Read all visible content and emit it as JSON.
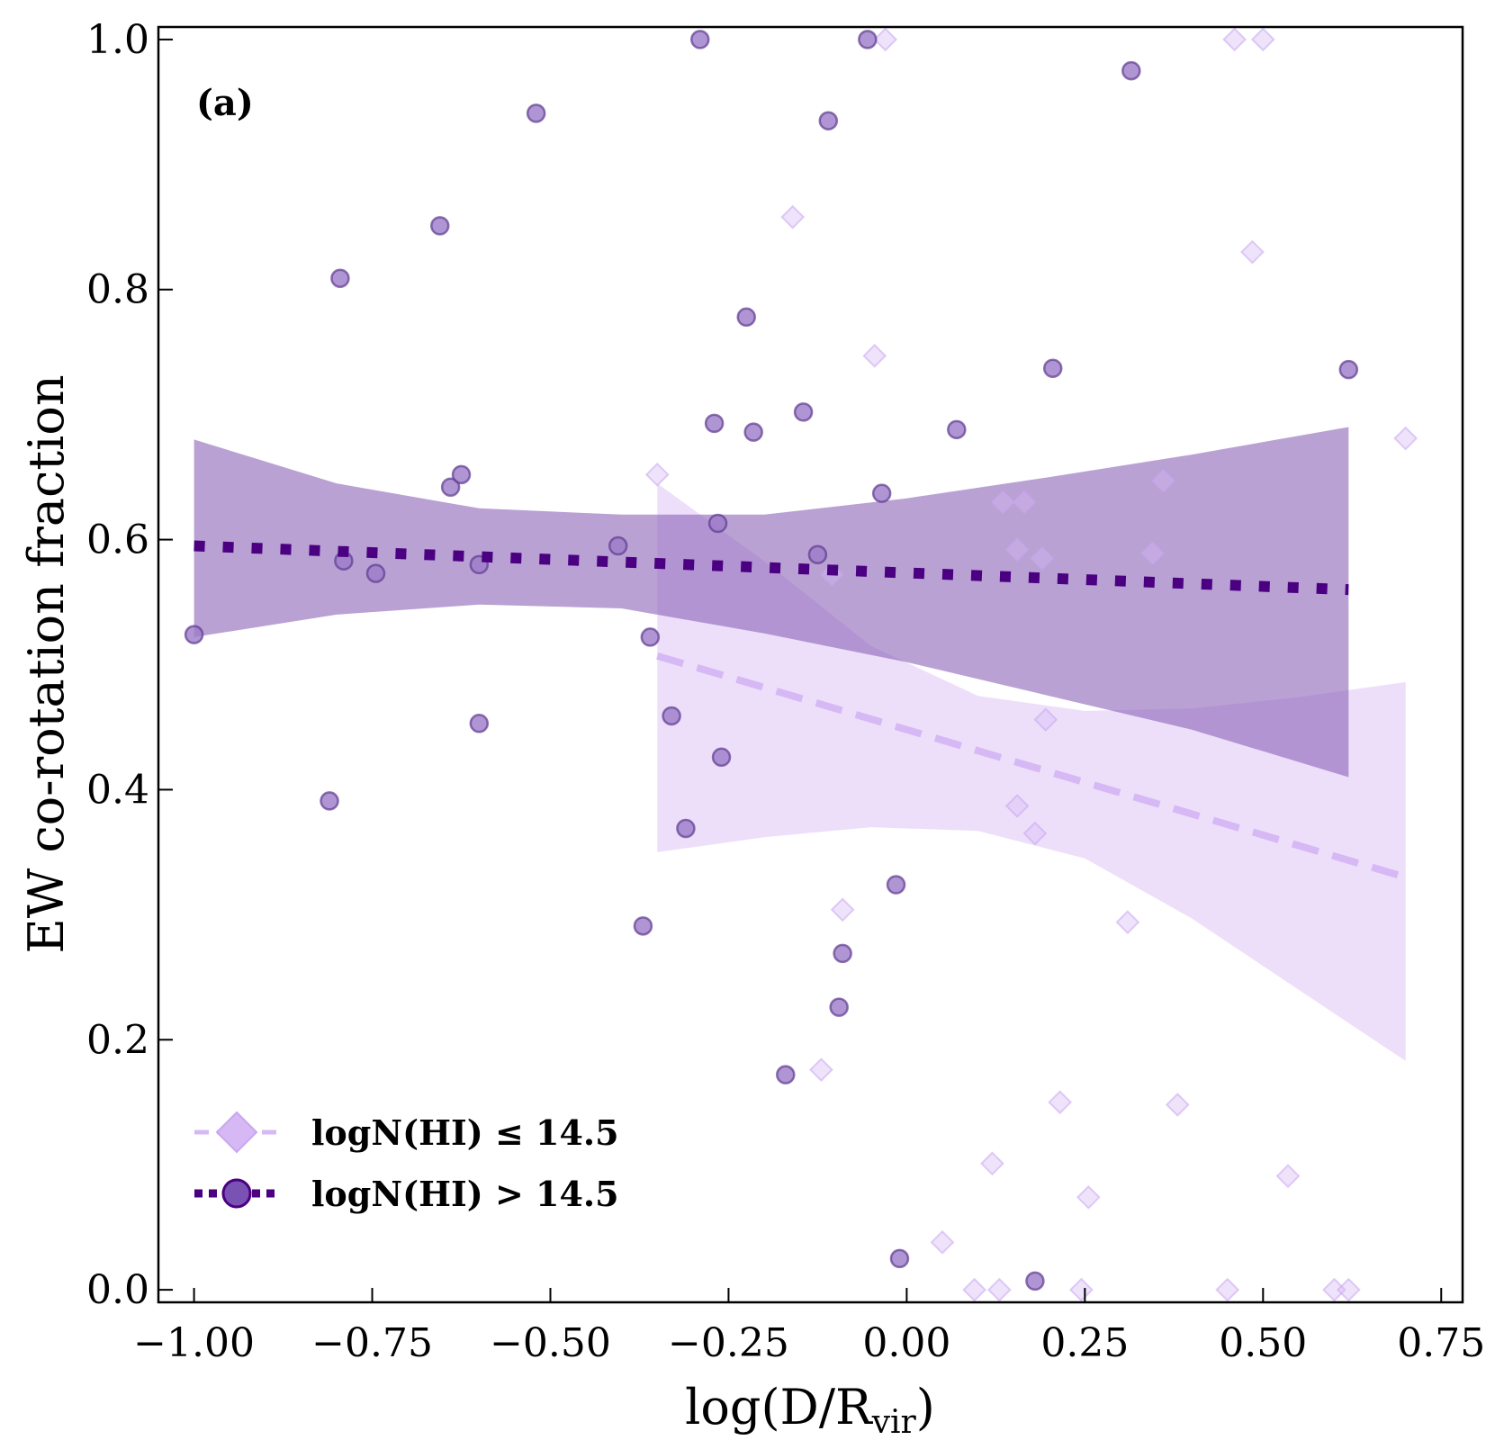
{
  "chart_data": {
    "type": "scatter",
    "panel_label": "(a)",
    "xlabel": "log(D/R",
    "xlabel_sub": "vir",
    "xlabel_close": ")",
    "ylabel": "EW co-rotation fraction",
    "xlim": [
      -1.05,
      0.78
    ],
    "ylim": [
      -0.01,
      1.01
    ],
    "x_ticks": [
      -1.0,
      -0.75,
      -0.5,
      -0.25,
      0.0,
      0.25,
      0.5,
      0.75
    ],
    "x_tick_labels": [
      "−1.00",
      "−0.75",
      "−0.50",
      "−0.25",
      "0.00",
      "0.25",
      "0.50",
      "0.75"
    ],
    "y_ticks": [
      0.0,
      0.2,
      0.4,
      0.6,
      0.8,
      1.0
    ],
    "y_tick_labels": [
      "0.0",
      "0.2",
      "0.4",
      "0.6",
      "0.8",
      "1.0"
    ],
    "grid": false,
    "legend_position": "bottom-left",
    "series": [
      {
        "name": "logN(HI) ≤ 14.5",
        "marker": "diamond",
        "line_style": "dashed",
        "color": "#d6b8f5",
        "fit": {
          "x": [
            -0.35,
            0.7
          ],
          "y": [
            0.507,
            0.33
          ]
        },
        "band": {
          "x": [
            -0.35,
            -0.2,
            -0.05,
            0.1,
            0.25,
            0.4,
            0.55,
            0.7
          ],
          "upper": [
            0.645,
            0.583,
            0.515,
            0.475,
            0.463,
            0.465,
            0.474,
            0.486
          ],
          "lower": [
            0.35,
            0.362,
            0.37,
            0.367,
            0.345,
            0.297,
            0.24,
            0.183
          ]
        },
        "points": [
          [
            -0.35,
            0.652
          ],
          [
            -0.16,
            0.858
          ],
          [
            -0.045,
            0.747
          ],
          [
            -0.03,
            1.0
          ],
          [
            -0.105,
            0.572
          ],
          [
            -0.09,
            0.304
          ],
          [
            -0.12,
            0.176
          ],
          [
            0.135,
            0.63
          ],
          [
            0.165,
            0.63
          ],
          [
            0.155,
            0.592
          ],
          [
            0.19,
            0.585
          ],
          [
            0.195,
            0.456
          ],
          [
            0.155,
            0.387
          ],
          [
            0.18,
            0.365
          ],
          [
            0.215,
            0.15
          ],
          [
            0.12,
            0.101
          ],
          [
            0.255,
            0.074
          ],
          [
            0.05,
            0.038
          ],
          [
            0.095,
            0.0
          ],
          [
            0.13,
            0.0
          ],
          [
            0.245,
            0.0
          ],
          [
            0.31,
            0.294
          ],
          [
            0.345,
            0.589
          ],
          [
            0.36,
            0.647
          ],
          [
            0.38,
            0.148
          ],
          [
            0.45,
            0.0
          ],
          [
            0.46,
            1.0
          ],
          [
            0.5,
            1.0
          ],
          [
            0.485,
            0.83
          ],
          [
            0.535,
            0.091
          ],
          [
            0.6,
            0.0
          ],
          [
            0.62,
            0.0
          ],
          [
            0.7,
            0.681
          ]
        ]
      },
      {
        "name": "logN(HI) > 14.5",
        "marker": "circle",
        "line_style": "dotted",
        "color": "#4b0082",
        "point_color": "#9b7bc8",
        "band_color": "#8a63b8",
        "fit": {
          "x": [
            -1.0,
            0.62
          ],
          "y": [
            0.595,
            0.56
          ]
        },
        "band": {
          "x": [
            -1.0,
            -0.8,
            -0.6,
            -0.4,
            -0.2,
            0.0,
            0.2,
            0.4,
            0.62
          ],
          "upper": [
            0.68,
            0.645,
            0.625,
            0.62,
            0.62,
            0.633,
            0.65,
            0.668,
            0.69
          ],
          "lower": [
            0.522,
            0.54,
            0.548,
            0.545,
            0.525,
            0.502,
            0.475,
            0.448,
            0.41
          ]
        },
        "points": [
          [
            -1.0,
            0.524
          ],
          [
            -0.81,
            0.391
          ],
          [
            -0.795,
            0.809
          ],
          [
            -0.79,
            0.583
          ],
          [
            -0.745,
            0.573
          ],
          [
            -0.655,
            0.851
          ],
          [
            -0.64,
            0.642
          ],
          [
            -0.625,
            0.652
          ],
          [
            -0.6,
            0.58
          ],
          [
            -0.6,
            0.453
          ],
          [
            -0.52,
            0.941
          ],
          [
            -0.405,
            0.595
          ],
          [
            -0.37,
            0.291
          ],
          [
            -0.36,
            0.522
          ],
          [
            -0.33,
            0.459
          ],
          [
            -0.31,
            0.369
          ],
          [
            -0.29,
            1.0
          ],
          [
            -0.27,
            0.693
          ],
          [
            -0.265,
            0.613
          ],
          [
            -0.26,
            0.426
          ],
          [
            -0.225,
            0.778
          ],
          [
            -0.215,
            0.686
          ],
          [
            -0.17,
            0.172
          ],
          [
            -0.145,
            0.702
          ],
          [
            -0.125,
            0.588
          ],
          [
            -0.11,
            0.935
          ],
          [
            -0.095,
            0.226
          ],
          [
            -0.09,
            0.269
          ],
          [
            -0.055,
            1.0
          ],
          [
            -0.035,
            0.637
          ],
          [
            -0.015,
            0.324
          ],
          [
            -0.01,
            0.025
          ],
          [
            0.07,
            0.688
          ],
          [
            0.18,
            0.007
          ],
          [
            0.205,
            0.737
          ],
          [
            0.315,
            0.975
          ],
          [
            0.62,
            0.736
          ]
        ]
      }
    ]
  }
}
